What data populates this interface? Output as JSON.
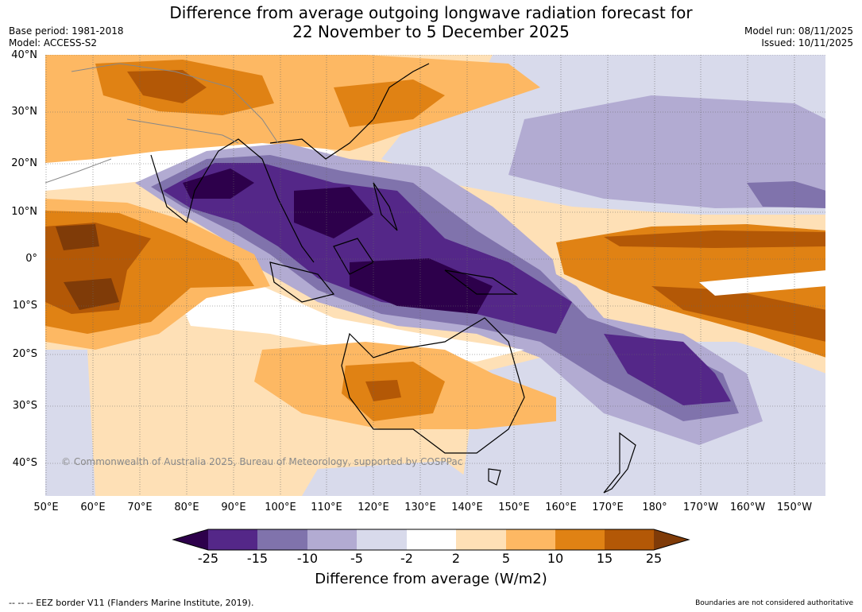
{
  "title": {
    "line1": "Difference from average outgoing longwave radiation forecast for",
    "line2": "22 November to 5 December 2025"
  },
  "meta_left": {
    "base_period": "Base period: 1981-2018",
    "model": "Model: ACCESS-S2"
  },
  "meta_right": {
    "model_run": "Model run: 08/11/2025",
    "issued": "Issued: 10/11/2025"
  },
  "map": {
    "lat_labels": [
      "40°N",
      "30°N",
      "20°N",
      "10°N",
      "0°",
      "10°S",
      "20°S",
      "30°S",
      "40°S"
    ],
    "lon_labels": [
      "50°E",
      "60°E",
      "70°E",
      "80°E",
      "90°E",
      "100°E",
      "110°E",
      "120°E",
      "130°E",
      "140°E",
      "150°E",
      "160°E",
      "170°E",
      "180°",
      "170°W",
      "160°W",
      "150°W"
    ],
    "extent": {
      "lon_min": 50,
      "lon_max": 216,
      "lat_min": -46,
      "lat_max": 40
    },
    "copyright": "© Commonwealth of Australia 2025, Bureau of Meteorology, supported by COSPPac"
  },
  "colorbar": {
    "ticks": [
      "-25",
      "-15",
      "-10",
      "-5",
      "-2",
      "2",
      "5",
      "10",
      "15",
      "25"
    ],
    "colors": [
      "#2d004b",
      "#542788",
      "#8073ac",
      "#b2abd2",
      "#d8daeb",
      "#ffffff",
      "#fee0b6",
      "#fdb863",
      "#e08214",
      "#b35806",
      "#7f3b08"
    ],
    "title": "Difference from average (W/m2)"
  },
  "footer": {
    "eez": "--  --  -- EEZ border V11 (Flanders Marine Institute, 2019).",
    "disclaimer": "Boundaries are not considered authoritative"
  }
}
